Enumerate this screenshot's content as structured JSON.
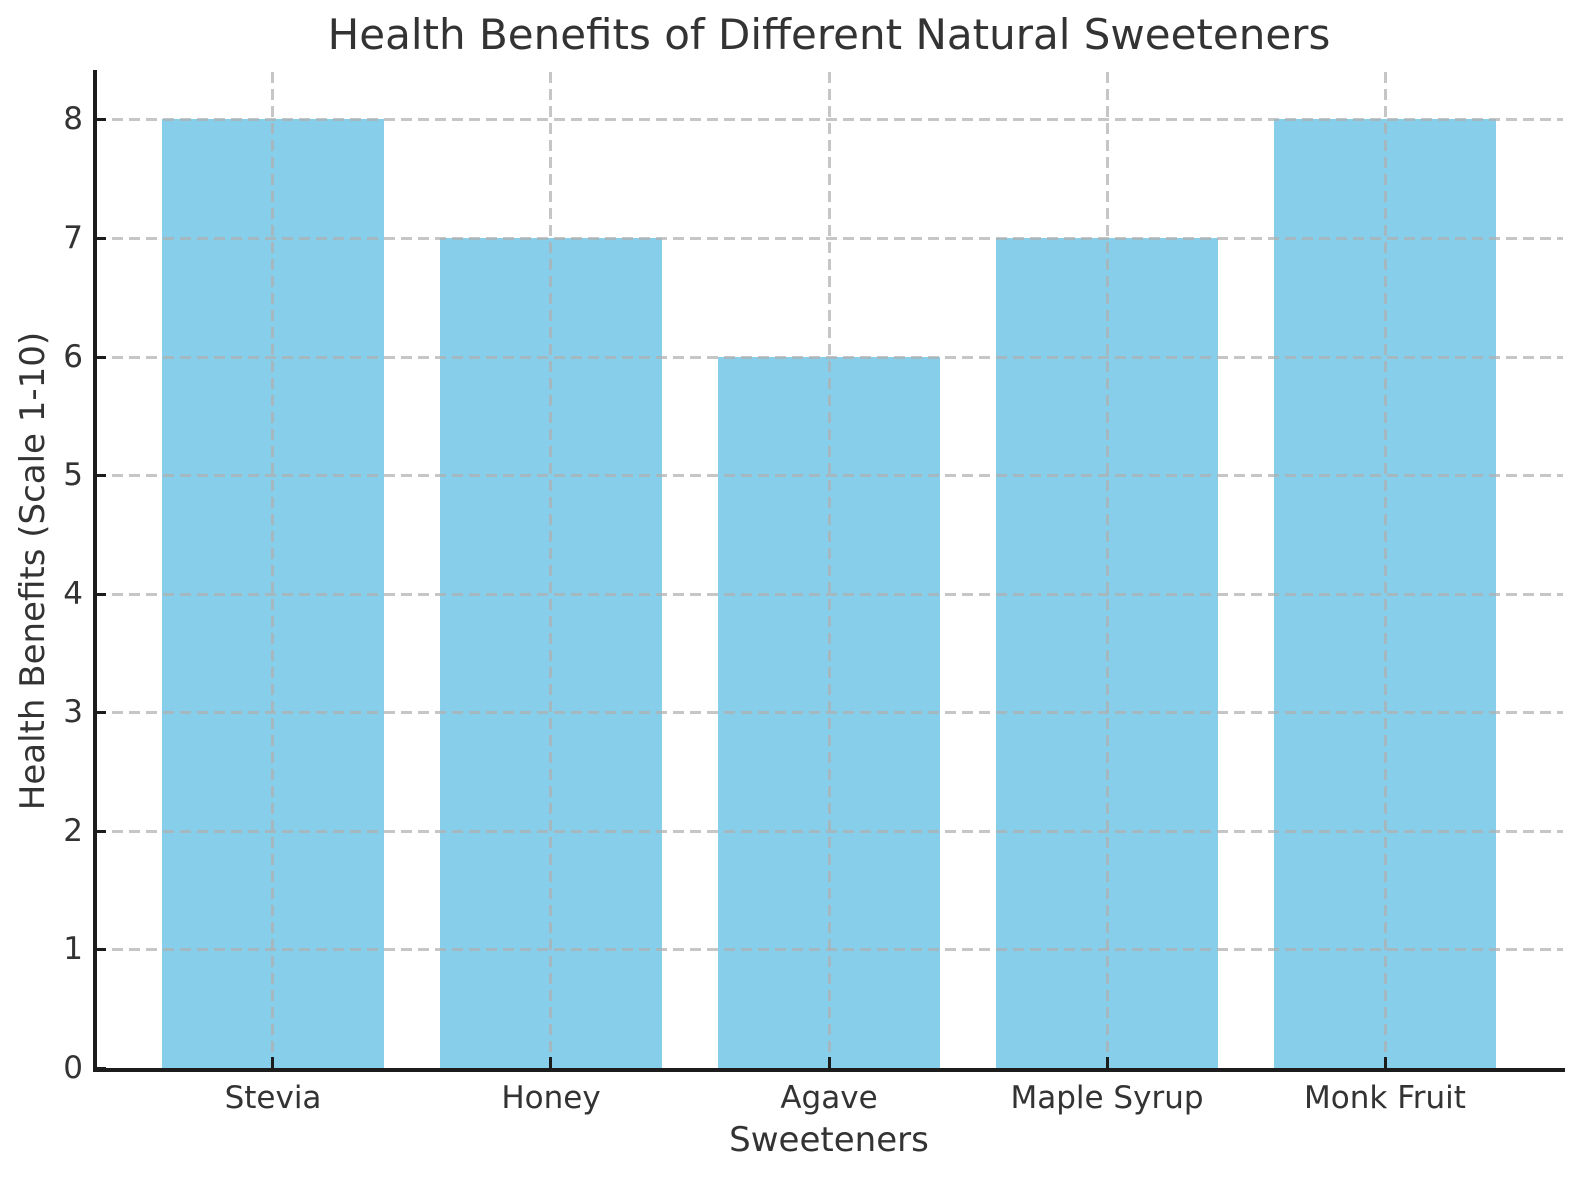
{
  "chart_data": {
    "type": "bar",
    "title": "Health Benefits of Different Natural Sweeteners",
    "xlabel": "Sweeteners",
    "ylabel": "Health Benefits (Scale 1-10)",
    "categories": [
      "Stevia",
      "Honey",
      "Agave",
      "Maple Syrup",
      "Monk Fruit"
    ],
    "values": [
      8,
      7,
      6,
      7,
      8
    ],
    "yticks": [
      0,
      1,
      2,
      3,
      4,
      5,
      6,
      7,
      8
    ],
    "ylim": [
      0,
      8.4
    ],
    "bar_color": "#87CEEB",
    "grid": true,
    "grid_style": "dashed",
    "grid_color": "#b0b0b0",
    "axis_color": "#1c1c1c",
    "text_color": "#333333",
    "background": "#ffffff",
    "legend": "none"
  }
}
